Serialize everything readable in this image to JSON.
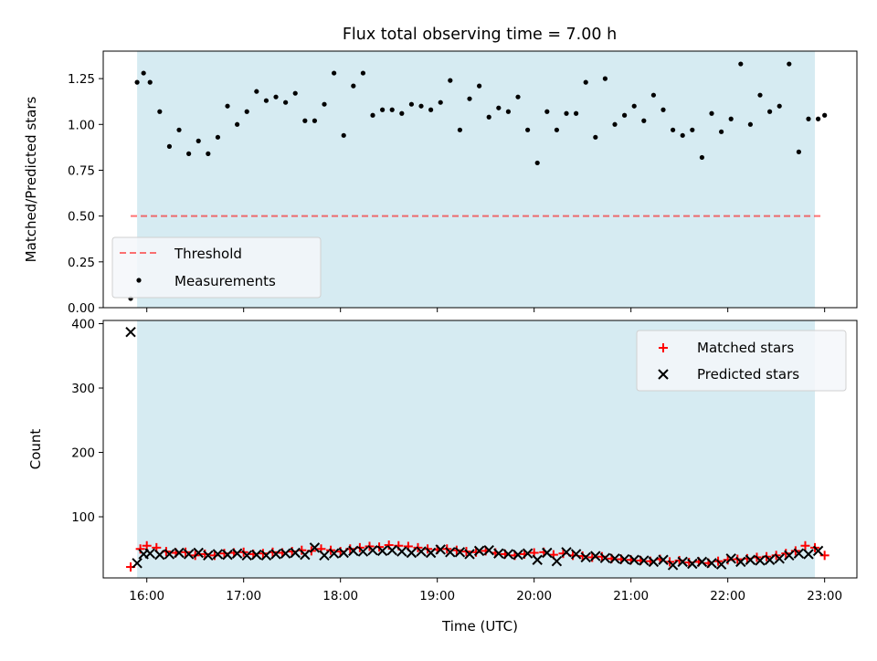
{
  "figure": {
    "title": "Flux total observing time = 7.00 h"
  },
  "colors": {
    "band": "#add8e6",
    "threshold": "#ff0000",
    "measurement": "#000000",
    "matched": "#ff0000",
    "predicted": "#000000",
    "legend_bg": "#f4f7fa"
  },
  "chart_data": [
    {
      "type": "scatter",
      "title": "Flux total observing time = 7.00 h",
      "xlabel": "",
      "ylabel": "Matched/Predicted stars",
      "xlim": [
        "15:33",
        "23:20"
      ],
      "ylim": [
        0,
        1.4
      ],
      "yticks": [
        "0.00",
        "0.25",
        "0.50",
        "0.75",
        "1.00",
        "1.25"
      ],
      "grid": false,
      "observing_window": [
        "15:54",
        "22:54"
      ],
      "legend": {
        "position": "lower-left",
        "entries": [
          "Threshold",
          "Measurements"
        ]
      },
      "threshold": {
        "name": "Threshold",
        "value": 0.5,
        "x_range": [
          "15:50",
          "22:58"
        ],
        "style": "dashed"
      },
      "series": [
        {
          "name": "Measurements",
          "x": [
            "15:50",
            "15:54",
            "15:58",
            "16:02",
            "16:08",
            "16:14",
            "16:20",
            "16:26",
            "16:32",
            "16:38",
            "16:44",
            "16:50",
            "16:56",
            "17:02",
            "17:08",
            "17:14",
            "17:20",
            "17:26",
            "17:32",
            "17:38",
            "17:44",
            "17:50",
            "17:56",
            "18:02",
            "18:08",
            "18:14",
            "18:20",
            "18:26",
            "18:32",
            "18:38",
            "18:44",
            "18:50",
            "18:56",
            "19:02",
            "19:08",
            "19:14",
            "19:20",
            "19:26",
            "19:32",
            "19:38",
            "19:44",
            "19:50",
            "19:56",
            "20:02",
            "20:08",
            "20:14",
            "20:20",
            "20:26",
            "20:32",
            "20:38",
            "20:44",
            "20:50",
            "20:56",
            "21:02",
            "21:08",
            "21:14",
            "21:20",
            "21:26",
            "21:32",
            "21:38",
            "21:44",
            "21:50",
            "21:56",
            "22:02",
            "22:08",
            "22:14",
            "22:20",
            "22:26",
            "22:32",
            "22:38",
            "22:44",
            "22:50",
            "22:56",
            "23:00"
          ],
          "y": [
            0.05,
            1.23,
            1.28,
            1.23,
            1.07,
            0.88,
            0.97,
            0.84,
            0.91,
            0.84,
            0.93,
            1.1,
            1.0,
            1.07,
            1.18,
            1.13,
            1.15,
            1.12,
            1.17,
            1.02,
            1.02,
            1.11,
            1.28,
            0.94,
            1.21,
            1.28,
            1.05,
            1.08,
            1.08,
            1.06,
            1.11,
            1.1,
            1.08,
            1.12,
            1.24,
            0.97,
            1.14,
            1.21,
            1.04,
            1.09,
            1.07,
            1.15,
            0.97,
            0.79,
            1.07,
            0.97,
            1.06,
            1.06,
            1.23,
            0.93,
            1.25,
            1.0,
            1.05,
            1.1,
            1.02,
            1.16,
            1.08,
            0.97,
            0.94,
            0.97,
            0.82,
            1.06,
            0.96,
            1.03,
            1.33,
            1.0,
            1.16,
            1.07,
            1.1,
            1.33,
            0.85,
            1.03,
            1.03,
            1.05
          ]
        }
      ]
    },
    {
      "type": "scatter",
      "title": "",
      "xlabel": "Time (UTC)",
      "ylabel": "Count",
      "xlim": [
        "15:33",
        "23:20"
      ],
      "ylim": [
        5,
        405
      ],
      "xticks": [
        "16:00",
        "17:00",
        "18:00",
        "19:00",
        "20:00",
        "21:00",
        "22:00",
        "23:00"
      ],
      "yticks": [
        "100",
        "200",
        "300",
        "400"
      ],
      "grid": false,
      "observing_window": [
        "15:54",
        "22:54"
      ],
      "legend": {
        "position": "top-right",
        "entries": [
          "Matched stars",
          "Predicted stars"
        ]
      },
      "series": [
        {
          "name": "Matched stars",
          "x": [
            "15:50",
            "15:56",
            "16:00",
            "16:06",
            "16:12",
            "16:18",
            "16:24",
            "16:30",
            "16:36",
            "16:42",
            "16:48",
            "16:54",
            "17:00",
            "17:06",
            "17:12",
            "17:18",
            "17:24",
            "17:30",
            "17:36",
            "17:42",
            "17:48",
            "17:54",
            "18:00",
            "18:06",
            "18:12",
            "18:18",
            "18:24",
            "18:30",
            "18:36",
            "18:42",
            "18:48",
            "18:54",
            "19:00",
            "19:06",
            "19:12",
            "19:18",
            "19:24",
            "19:30",
            "19:36",
            "19:42",
            "19:48",
            "19:54",
            "20:00",
            "20:06",
            "20:12",
            "20:18",
            "20:24",
            "20:30",
            "20:36",
            "20:42",
            "20:48",
            "20:54",
            "21:00",
            "21:06",
            "21:12",
            "21:18",
            "21:24",
            "21:30",
            "21:36",
            "21:42",
            "21:48",
            "21:54",
            "22:00",
            "22:06",
            "22:12",
            "22:18",
            "22:24",
            "22:30",
            "22:36",
            "22:42",
            "22:48",
            "22:54",
            "23:00"
          ],
          "y": [
            22,
            50,
            55,
            52,
            46,
            44,
            45,
            40,
            42,
            40,
            43,
            44,
            45,
            42,
            43,
            45,
            44,
            46,
            48,
            47,
            50,
            48,
            46,
            50,
            52,
            54,
            53,
            56,
            55,
            54,
            52,
            50,
            49,
            50,
            48,
            46,
            45,
            47,
            44,
            42,
            40,
            42,
            44,
            45,
            41,
            43,
            40,
            39,
            37,
            38,
            35,
            34,
            33,
            32,
            31,
            34,
            30,
            32,
            29,
            30,
            28,
            31,
            33,
            34,
            35,
            37,
            38,
            40,
            43,
            47,
            55,
            52,
            40
          ]
        },
        {
          "name": "Predicted stars",
          "x": [
            "15:50",
            "15:54",
            "15:58",
            "16:02",
            "16:08",
            "16:14",
            "16:20",
            "16:26",
            "16:32",
            "16:38",
            "16:44",
            "16:50",
            "16:56",
            "17:02",
            "17:08",
            "17:14",
            "17:20",
            "17:26",
            "17:32",
            "17:38",
            "17:44",
            "17:50",
            "17:56",
            "18:02",
            "18:08",
            "18:14",
            "18:20",
            "18:26",
            "18:32",
            "18:38",
            "18:44",
            "18:50",
            "18:56",
            "19:02",
            "19:08",
            "19:14",
            "19:20",
            "19:26",
            "19:32",
            "19:38",
            "19:44",
            "19:50",
            "19:56",
            "20:02",
            "20:08",
            "20:14",
            "20:20",
            "20:26",
            "20:32",
            "20:38",
            "20:44",
            "20:50",
            "20:56",
            "21:02",
            "21:08",
            "21:14",
            "21:20",
            "21:26",
            "21:32",
            "21:38",
            "21:44",
            "21:50",
            "21:56",
            "22:02",
            "22:08",
            "22:14",
            "22:20",
            "22:26",
            "22:32",
            "22:38",
            "22:44",
            "22:50",
            "22:56"
          ],
          "y": [
            387,
            28,
            42,
            43,
            41,
            42,
            44,
            42,
            44,
            40,
            42,
            41,
            43,
            40,
            41,
            40,
            42,
            43,
            44,
            41,
            52,
            40,
            43,
            44,
            47,
            46,
            48,
            47,
            48,
            46,
            44,
            46,
            44,
            49,
            45,
            45,
            42,
            47,
            48,
            43,
            42,
            41,
            43,
            33,
            44,
            31,
            45,
            42,
            37,
            39,
            36,
            35,
            34,
            33,
            32,
            30,
            33,
            25,
            30,
            27,
            30,
            28,
            26,
            35,
            30,
            33,
            32,
            33,
            35,
            40,
            43,
            42,
            47
          ]
        }
      ]
    }
  ]
}
